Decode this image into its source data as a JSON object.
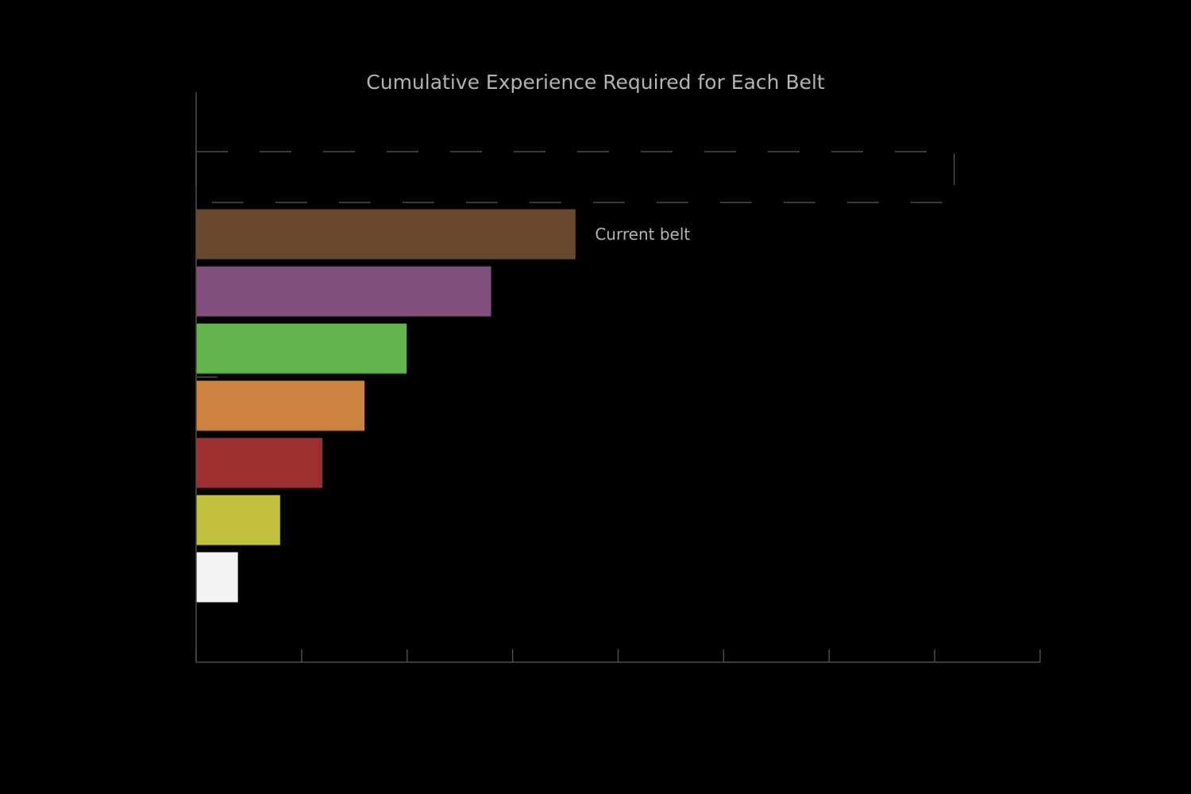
{
  "chart_data": {
    "type": "bar",
    "orientation": "horizontal",
    "title": "Cumulative Experience Required for Each Belt",
    "xlabel": "",
    "ylabel": "",
    "xlim": [
      0,
      8
    ],
    "x_ticks": [
      0,
      1,
      2,
      3,
      4,
      5,
      6,
      7,
      8
    ],
    "x_tick_labels": [],
    "categories": [
      "",
      "",
      "",
      "",
      "",
      "",
      "",
      ""
    ],
    "values": [
      7.2,
      3.6,
      2.8,
      2.0,
      1.6,
      1.2,
      0.8,
      0.4
    ],
    "colors": [
      "#000000",
      "#67482b",
      "#824e7d",
      "#5fb54b",
      "#cc833f",
      "#9c2f2f",
      "#c1c13d",
      "#f2f2f2"
    ],
    "dashed_bar_index": 0,
    "dashed_bar_value": 7.2,
    "annotation": {
      "text": "Current belt",
      "bar_index": 1
    },
    "grid": false,
    "legend": "none"
  }
}
